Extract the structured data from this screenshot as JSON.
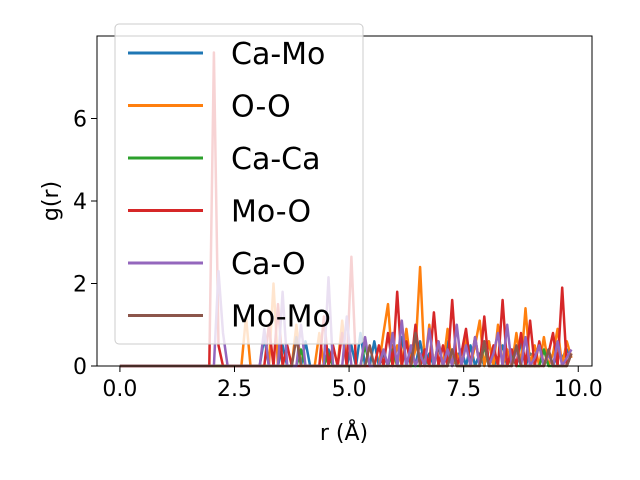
{
  "chart_data": {
    "type": "line",
    "title": "",
    "xlabel": "r (Å)",
    "ylabel": "g(r)",
    "xlim": [
      -0.5,
      10.3
    ],
    "ylim": [
      0,
      8.0
    ],
    "xticks": [
      0.0,
      2.5,
      5.0,
      7.5,
      10.0
    ],
    "xtick_labels": [
      "0.0",
      "2.5",
      "5.0",
      "7.5",
      "10.0"
    ],
    "yticks": [
      0,
      2,
      4,
      6
    ],
    "ytick_labels": [
      "0",
      "2",
      "4",
      "6"
    ],
    "grid": false,
    "legend_position": "top-left",
    "series": [
      {
        "name": "Ca-Mo",
        "color": "#1f77b4",
        "x": [
          0,
          3.05,
          3.15,
          3.25,
          3.45,
          3.55,
          3.65,
          3.95,
          4.05,
          4.15,
          4.45,
          4.55,
          4.65,
          4.95,
          5.05,
          5.15,
          5.25,
          5.35,
          5.45,
          5.55,
          5.65,
          5.75,
          5.85,
          5.95,
          6.05,
          6.15,
          6.25,
          6.35,
          6.45,
          6.55,
          6.65,
          6.75,
          6.85,
          6.95,
          7.05,
          7.15,
          7.25,
          7.35,
          7.45,
          7.55,
          7.65,
          7.75,
          7.85,
          7.95,
          8.05,
          8.15,
          8.25,
          8.35,
          8.45,
          8.55,
          8.65,
          8.75,
          8.85,
          8.95,
          9.05,
          9.15,
          9.25,
          9.35,
          9.45,
          9.55,
          9.65,
          9.75,
          9.85
        ],
        "y": [
          0,
          0,
          0.7,
          0,
          0,
          0.5,
          0,
          0,
          0.6,
          0,
          0,
          0.4,
          0,
          0,
          0.5,
          0,
          0.8,
          0,
          0,
          0.6,
          0,
          0.3,
          0,
          0.5,
          0,
          0.7,
          0,
          0.4,
          0,
          0.6,
          0,
          0.3,
          0,
          0.5,
          0,
          0.6,
          0,
          0.2,
          0.4,
          0,
          0.5,
          0,
          0.3,
          0,
          0.6,
          0,
          0.2,
          0.5,
          0,
          0.4,
          0,
          0.6,
          0,
          0.3,
          0.2,
          0.5,
          0,
          0.4,
          0,
          0.3,
          0.2,
          0.4,
          0.2
        ]
      },
      {
        "name": "O-O",
        "color": "#ff7f0e",
        "x": [
          0,
          2.65,
          2.75,
          2.85,
          3.25,
          3.35,
          3.45,
          3.75,
          3.85,
          3.95,
          4.25,
          4.35,
          4.45,
          4.75,
          4.85,
          4.95,
          5.25,
          5.35,
          5.45,
          5.65,
          5.75,
          5.85,
          5.95,
          6.05,
          6.15,
          6.25,
          6.35,
          6.45,
          6.55,
          6.65,
          6.75,
          6.85,
          6.95,
          7.05,
          7.15,
          7.25,
          7.35,
          7.45,
          7.55,
          7.65,
          7.75,
          7.85,
          7.95,
          8.05,
          8.15,
          8.25,
          8.35,
          8.45,
          8.55,
          8.65,
          8.75,
          8.85,
          8.95,
          9.05,
          9.15,
          9.25,
          9.35,
          9.45,
          9.55,
          9.65,
          9.75,
          9.85
        ],
        "y": [
          0,
          0,
          1.2,
          0,
          0,
          2.0,
          0,
          0,
          1.0,
          0,
          0,
          0.8,
          0,
          0,
          1.1,
          0,
          0,
          0.6,
          0,
          0,
          0.8,
          1.5,
          0,
          0.5,
          0,
          0.9,
          0,
          0.4,
          2.4,
          0,
          1.0,
          0,
          0.6,
          0,
          0.9,
          0,
          0.3,
          0,
          0.7,
          0,
          0.5,
          1.1,
          0,
          0.6,
          0,
          1.0,
          0,
          0.4,
          0,
          0.8,
          0,
          1.4,
          0,
          0.5,
          0,
          0.7,
          0,
          0.3,
          0.9,
          0,
          0.6,
          0.2
        ]
      },
      {
        "name": "Ca-Ca",
        "color": "#2ca02c",
        "x": [
          0,
          3.85,
          3.95,
          4.05,
          4.45,
          4.55,
          4.65,
          5.25,
          5.35,
          5.45,
          5.85,
          5.95,
          6.05,
          6.55,
          6.65,
          6.75,
          7.15,
          7.25,
          7.35,
          7.85,
          7.95,
          8.05,
          8.45,
          8.55,
          8.65,
          9.15,
          9.25,
          9.35,
          9.75,
          9.85
        ],
        "y": [
          0,
          0,
          0.4,
          0,
          0,
          0.3,
          0,
          0,
          0.5,
          0,
          0,
          0.4,
          0,
          0,
          0.3,
          0,
          0,
          0.4,
          0,
          0,
          0.5,
          0,
          0,
          0.3,
          0,
          0,
          0.4,
          0,
          0,
          0.3
        ]
      },
      {
        "name": "Mo-O",
        "color": "#d62728",
        "x": [
          0,
          1.95,
          2.05,
          2.15,
          2.25,
          3.15,
          3.25,
          3.35,
          3.45,
          3.55,
          3.65,
          3.75,
          4.35,
          4.45,
          4.55,
          4.65,
          4.75,
          4.85,
          4.95,
          5.05,
          5.15,
          5.55,
          5.65,
          5.75,
          5.85,
          5.95,
          6.05,
          6.15,
          6.25,
          6.35,
          6.45,
          6.55,
          6.65,
          6.75,
          6.85,
          6.95,
          7.05,
          7.15,
          7.25,
          7.35,
          7.45,
          7.55,
          7.65,
          7.75,
          7.85,
          7.95,
          8.05,
          8.15,
          8.25,
          8.35,
          8.45,
          8.55,
          8.65,
          8.75,
          8.85,
          8.95,
          9.05,
          9.15,
          9.25,
          9.35,
          9.45,
          9.55,
          9.65,
          9.75,
          9.85
        ],
        "y": [
          0,
          0,
          7.6,
          0.5,
          0,
          0,
          1.0,
          0,
          1.5,
          0,
          0.5,
          0,
          0,
          1.2,
          0,
          0.5,
          0,
          0.8,
          0,
          2.65,
          0,
          0,
          0.5,
          0,
          0.8,
          0,
          1.8,
          0,
          0.6,
          0,
          1.0,
          0,
          0.4,
          0,
          1.3,
          0,
          0.5,
          0,
          1.6,
          0,
          0.3,
          0.9,
          0,
          0.7,
          0,
          1.2,
          0,
          0.5,
          0,
          1.6,
          0,
          0.4,
          0,
          0.8,
          0,
          1.1,
          0,
          0.6,
          0,
          0.3,
          0.8,
          0,
          1.9,
          0,
          0.3
        ]
      },
      {
        "name": "Ca-O",
        "color": "#9467bd",
        "x": [
          0,
          2.05,
          2.15,
          2.25,
          2.35,
          3.05,
          3.15,
          3.25,
          3.45,
          3.55,
          3.65,
          3.85,
          3.95,
          4.05,
          4.45,
          4.55,
          4.65,
          4.85,
          4.95,
          5.05,
          5.25,
          5.35,
          5.45,
          5.65,
          5.75,
          5.85,
          5.95,
          6.05,
          6.15,
          6.25,
          6.35,
          6.45,
          6.55,
          6.65,
          6.75,
          6.85,
          6.95,
          7.05,
          7.15,
          7.25,
          7.35,
          7.45,
          7.55,
          7.65,
          7.75,
          7.85,
          7.95,
          8.05,
          8.15,
          8.25,
          8.35,
          8.45,
          8.55,
          8.65,
          8.75,
          8.85,
          8.95,
          9.05,
          9.15,
          9.25,
          9.35,
          9.45,
          9.55,
          9.65,
          9.75,
          9.85
        ],
        "y": [
          0,
          0,
          2.3,
          0.8,
          0,
          0,
          0.9,
          0,
          0,
          1.8,
          0,
          0,
          1.0,
          0,
          0,
          2.15,
          0,
          0,
          1.2,
          0,
          0,
          0.7,
          0,
          0,
          0.4,
          0,
          0.8,
          0,
          1.1,
          0,
          0.5,
          0,
          0.3,
          0,
          0.9,
          0,
          0.6,
          0,
          0.4,
          0,
          1.0,
          0,
          0.5,
          0,
          0.7,
          0,
          0.6,
          0,
          0.3,
          0.8,
          0,
          1.0,
          0,
          0.4,
          0,
          0.7,
          0,
          0.2,
          0.5,
          0,
          0.3,
          0,
          0.6,
          0,
          0.2,
          0.4
        ]
      },
      {
        "name": "Mo-Mo",
        "color": "#8c564b",
        "x": [
          0,
          3.75,
          3.85,
          3.95,
          5.35,
          5.45,
          5.55,
          6.35,
          6.45,
          6.55,
          7.15,
          7.25,
          7.35,
          7.85,
          7.95,
          8.05,
          8.55,
          8.65,
          8.75,
          9.25,
          9.35,
          9.45,
          9.75,
          9.85
        ],
        "y": [
          0,
          0,
          0.7,
          0,
          0,
          0.5,
          0,
          0,
          0.8,
          0,
          0,
          0.4,
          0,
          0,
          0.6,
          0,
          0,
          0.5,
          0,
          0,
          0.4,
          0,
          0,
          0.3
        ]
      }
    ]
  }
}
